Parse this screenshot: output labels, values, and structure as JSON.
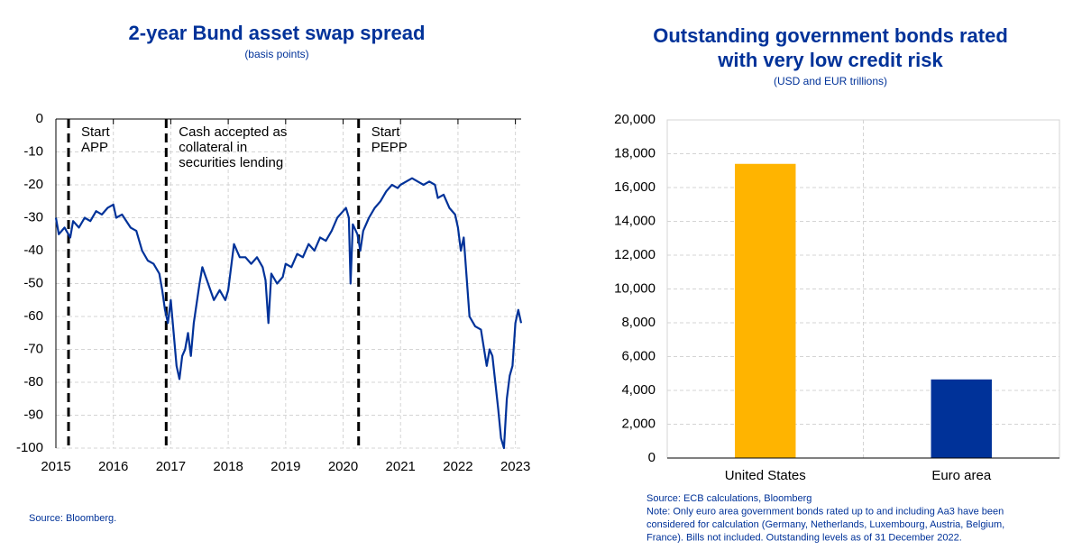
{
  "chart_data": [
    {
      "type": "line",
      "title": "2-year Bund asset swap spread",
      "subtitle": "(basis points)",
      "source": "Source: Bloomberg.",
      "color": "#003299",
      "x": [
        2015.0,
        2015.05,
        2015.15,
        2015.25,
        2015.3,
        2015.4,
        2015.5,
        2015.6,
        2015.7,
        2015.8,
        2015.9,
        2016.0,
        2016.05,
        2016.15,
        2016.3,
        2016.4,
        2016.5,
        2016.6,
        2016.7,
        2016.8,
        2016.85,
        2016.9,
        2016.95,
        2017.0,
        2017.05,
        2017.1,
        2017.15,
        2017.2,
        2017.25,
        2017.3,
        2017.35,
        2017.4,
        2017.5,
        2017.55,
        2017.65,
        2017.75,
        2017.85,
        2017.95,
        2018.0,
        2018.05,
        2018.1,
        2018.2,
        2018.3,
        2018.4,
        2018.5,
        2018.6,
        2018.65,
        2018.7,
        2018.75,
        2018.85,
        2018.95,
        2019.0,
        2019.1,
        2019.2,
        2019.3,
        2019.4,
        2019.5,
        2019.6,
        2019.7,
        2019.8,
        2019.9,
        2020.0,
        2020.05,
        2020.1,
        2020.13,
        2020.17,
        2020.25,
        2020.3,
        2020.35,
        2020.45,
        2020.55,
        2020.65,
        2020.75,
        2020.85,
        2020.95,
        2021.0,
        2021.1,
        2021.2,
        2021.3,
        2021.4,
        2021.5,
        2021.6,
        2021.65,
        2021.75,
        2021.85,
        2021.95,
        2022.0,
        2022.05,
        2022.1,
        2022.15,
        2022.2,
        2022.3,
        2022.4,
        2022.5,
        2022.55,
        2022.6,
        2022.65,
        2022.7,
        2022.75,
        2022.8,
        2022.85,
        2022.9,
        2022.95,
        2023.0,
        2023.05,
        2023.1
      ],
      "values": [
        -30,
        -35,
        -33,
        -36,
        -31,
        -33,
        -30,
        -31,
        -28,
        -29,
        -27,
        -26,
        -30,
        -29,
        -33,
        -34,
        -40,
        -43,
        -44,
        -47,
        -52,
        -58,
        -62,
        -55,
        -65,
        -75,
        -79,
        -72,
        -70,
        -65,
        -72,
        -62,
        -50,
        -45,
        -50,
        -55,
        -52,
        -55,
        -52,
        -45,
        -38,
        -42,
        -42,
        -44,
        -42,
        -45,
        -49,
        -62,
        -47,
        -50,
        -48,
        -44,
        -45,
        -41,
        -42,
        -38,
        -40,
        -36,
        -37,
        -34,
        -30,
        -28,
        -27,
        -30,
        -50,
        -32,
        -35,
        -40,
        -34,
        -30,
        -27,
        -25,
        -22,
        -20,
        -21,
        -20,
        -19,
        -18,
        -19,
        -20,
        -19,
        -20,
        -24,
        -23,
        -27,
        -29,
        -33,
        -40,
        -36,
        -48,
        -60,
        -63,
        -64,
        -75,
        -70,
        -72,
        -80,
        -88,
        -97,
        -100,
        -85,
        -78,
        -75,
        -62,
        -58,
        -62
      ],
      "xlim": [
        2015,
        2023.1
      ],
      "xticks": [
        2015,
        2016,
        2017,
        2018,
        2019,
        2020,
        2021,
        2022,
        2023
      ],
      "ylim": [
        -100,
        0
      ],
      "yticks": [
        0,
        -10,
        -20,
        -30,
        -40,
        -50,
        -60,
        -70,
        -80,
        -90,
        -100
      ],
      "grid": true,
      "annotations": [
        {
          "x": 2015.22,
          "lines": [
            "Start",
            "APP"
          ]
        },
        {
          "x": 2016.92,
          "lines": [
            "Cash accepted as",
            "collateral  in",
            "securities lending"
          ]
        },
        {
          "x": 2020.27,
          "lines": [
            "Start",
            "PEPP"
          ]
        }
      ]
    },
    {
      "type": "bar",
      "title": [
        "Outstanding government bonds rated",
        "with very low credit risk"
      ],
      "subtitle": "(USD and EUR trillions)",
      "categories": [
        "United States",
        "Euro area"
      ],
      "values": [
        17400,
        4650
      ],
      "colors": [
        "#ffb400",
        "#003299"
      ],
      "ylim": [
        0,
        20000
      ],
      "yticks": [
        0,
        {
          "value": 2000,
          "label": "2,000"
        },
        {
          "value": 4000,
          "label": "4,000"
        },
        {
          "value": 6000,
          "label": "6,000"
        },
        {
          "value": 8000,
          "label": "8,000"
        },
        {
          "value": 10000,
          "label": "10,000"
        },
        {
          "value": 12000,
          "label": "12,000"
        },
        {
          "value": 14000,
          "label": "14,000"
        },
        {
          "value": 16000,
          "label": "16,000"
        },
        {
          "value": 18000,
          "label": "18,000"
        },
        {
          "value": 20000,
          "label": "20,000"
        }
      ],
      "grid": true,
      "notes": [
        "Source: ECB calculations, Bloomberg",
        "Note:  Only euro area government bonds rated up to and including Aa3 have been",
        "considered for calculation (Germany, Netherlands, Luxembourg, Austria, Belgium,",
        "France). Bills not included. Outstanding levels as of 31 December 2022."
      ]
    }
  ]
}
